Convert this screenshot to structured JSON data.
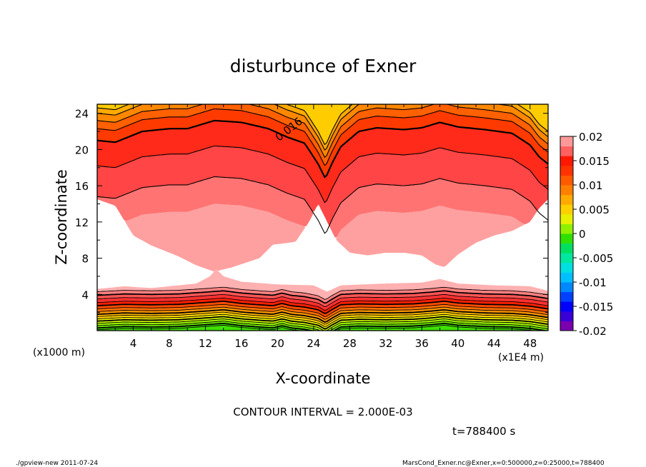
{
  "chart_data": {
    "type": "contour",
    "title": "disturbunce of Exner",
    "xlabel": "X-coordinate",
    "ylabel": "Z-coordinate",
    "x_unit_note": "(x1E4 m)",
    "y_unit_note": "(x1000 m)",
    "xlim": [
      0,
      50
    ],
    "ylim": [
      0,
      25
    ],
    "x_ticks": [
      4,
      8,
      12,
      16,
      20,
      24,
      28,
      32,
      36,
      40,
      44,
      48
    ],
    "y_ticks": [
      4,
      8,
      12,
      16,
      20,
      24
    ],
    "x_tick_labels": [
      "4",
      "8",
      "12",
      "16",
      "20",
      "24",
      "28",
      "32",
      "36",
      "40",
      "44",
      "48"
    ],
    "y_tick_labels": [
      "4",
      "8",
      "12",
      "16",
      "20",
      "24"
    ],
    "contour_label": "0.016",
    "contour_interval_text": "CONTOUR INTERVAL = 2.000E-03",
    "time_text": "t=788400 s",
    "colorbar": {
      "min": -0.02,
      "max": 0.02,
      "tick_values": [
        0.02,
        0.015,
        0.01,
        0.005,
        0,
        -0.005,
        -0.01,
        -0.015,
        -0.02
      ],
      "tick_labels": [
        "0.02",
        "0.015",
        "0.01",
        "0.005",
        "0",
        "-0.005",
        "-0.01",
        "-0.015",
        "-0.02"
      ],
      "colors": [
        "#7a00b0",
        "#3a00d8",
        "#0000ff",
        "#0040ff",
        "#0088ff",
        "#00c0ff",
        "#00e0e0",
        "#00e8a0",
        "#00e060",
        "#30e000",
        "#90f000",
        "#e8f000",
        "#ffd000",
        "#ffaa00",
        "#ff8000",
        "#ff5a00",
        "#ff3300",
        "#ff1800",
        "#ff6060",
        "#ff9999"
      ]
    },
    "upper_band": {
      "profile_x": [
        0,
        2,
        5,
        8,
        10,
        13,
        16,
        19,
        21,
        23,
        24.5,
        25.3,
        26,
        27,
        29,
        31,
        34,
        36,
        38,
        40,
        43,
        46,
        48,
        49,
        50
      ],
      "profile_d": [
        0,
        -0.2,
        1.0,
        1.3,
        1.3,
        2.2,
        2.0,
        1.3,
        0.4,
        -0.3,
        -2.6,
        -4.2,
        -2.6,
        -0.7,
        1.0,
        1.4,
        1.2,
        1.4,
        2.0,
        1.5,
        1.2,
        0.8,
        -0.5,
        -1.8,
        -2.6
      ],
      "contour_levels": [
        24.6,
        24.0,
        23.2,
        22.3,
        21.0,
        18.2,
        14.8
      ],
      "labeled_level": 21.0
    },
    "white_region": {
      "top_x": [
        0,
        2,
        4,
        6,
        9,
        11,
        13,
        15,
        18,
        19.5,
        20.5,
        22,
        23.5,
        24.5,
        25.5,
        26.5,
        28,
        30,
        32,
        34,
        36,
        37.5,
        38.5,
        40,
        42,
        44,
        46,
        48,
        49,
        50
      ],
      "top_z": [
        14.5,
        13.8,
        10.5,
        9.4,
        8.2,
        7.2,
        6.5,
        7.0,
        8.0,
        9.5,
        9.6,
        9.8,
        12.0,
        14.0,
        12.0,
        10.0,
        8.6,
        8.3,
        8.6,
        8.6,
        8.3,
        7.3,
        7.0,
        8.4,
        9.7,
        10.5,
        11.0,
        12.0,
        13.5,
        14.5
      ],
      "bottom_x": [
        0,
        3,
        6,
        9,
        11,
        12.5,
        13.2,
        14,
        16,
        20,
        24,
        25.5,
        27,
        32,
        36,
        38,
        40,
        44,
        48,
        50
      ],
      "bottom_z": [
        4.6,
        4.9,
        4.7,
        5.0,
        5.2,
        6.0,
        6.8,
        6.0,
        5.4,
        5.1,
        5.0,
        4.3,
        5.0,
        5.2,
        5.3,
        5.7,
        5.2,
        5.0,
        4.9,
        4.4
      ]
    },
    "lower_band": {
      "base_x": [
        0,
        3,
        6,
        9,
        12,
        14,
        16,
        18,
        19.5,
        20.5,
        21.5,
        23,
        24.5,
        25.3,
        26,
        27,
        29,
        32,
        35,
        37,
        38.5,
        40,
        43,
        46,
        48,
        49,
        50
      ],
      "base_dz": [
        0,
        0.15,
        0.1,
        0.15,
        0.35,
        0.5,
        0.25,
        0.1,
        0.0,
        0.25,
        0.0,
        -0.15,
        -0.45,
        -0.9,
        -0.45,
        0.1,
        0.2,
        0.15,
        0.2,
        0.35,
        0.5,
        0.3,
        0.15,
        0.1,
        -0.05,
        -0.2,
        -0.35
      ],
      "levels": [
        4.3,
        3.9,
        3.5,
        3.1,
        2.75,
        2.4,
        2.1,
        1.8,
        1.55,
        1.3,
        1.05,
        0.8,
        0.55,
        0.3,
        0.1
      ]
    }
  },
  "footer": {
    "left": "./gpview-new   2011-07-24",
    "right": "MarsCond_Exner.nc@Exner,x=0:500000,z=0:25000,t=788400"
  }
}
